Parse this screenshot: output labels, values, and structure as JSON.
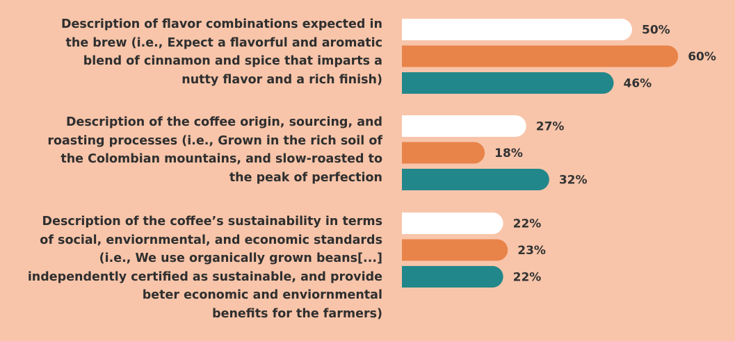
{
  "chart_data": {
    "type": "bar",
    "orientation": "horizontal",
    "categories": [
      "Description of flavor combinations expected in\nthe brew (i.e., Expect a flavorful and aromatic\nblend of cinnamon and spice that imparts a\nnutty flavor and a rich finish)",
      "Description of the coffee origin, sourcing, and\nroasting processes (i.e., Grown in the rich soil of\nthe Colombian mountains, and slow-roasted to\nthe peak of perfection",
      "Description of the coffee’s sustainability in terms\nof social, enviornmental, and economic standards\n(i.e., We use organically grown beans[...]\nindependently certified as sustainable, and provide\nbeter economic and enviornmental\nbenefits for the farmers)"
    ],
    "series": [
      {
        "color": "#ffffff",
        "values": [
          50,
          27,
          22
        ],
        "labels": [
          "50%",
          "27%",
          "22%"
        ]
      },
      {
        "color": "#e8844a",
        "values": [
          60,
          18,
          23
        ],
        "labels": [
          "60%",
          "18%",
          "23%"
        ]
      },
      {
        "color": "#22878a",
        "values": [
          46,
          32,
          22
        ],
        "labels": [
          "46%",
          "32%",
          "22%"
        ]
      }
    ],
    "unit": "%",
    "value_labels": true,
    "legend": "none",
    "grid": false,
    "axes_visible": false
  }
}
